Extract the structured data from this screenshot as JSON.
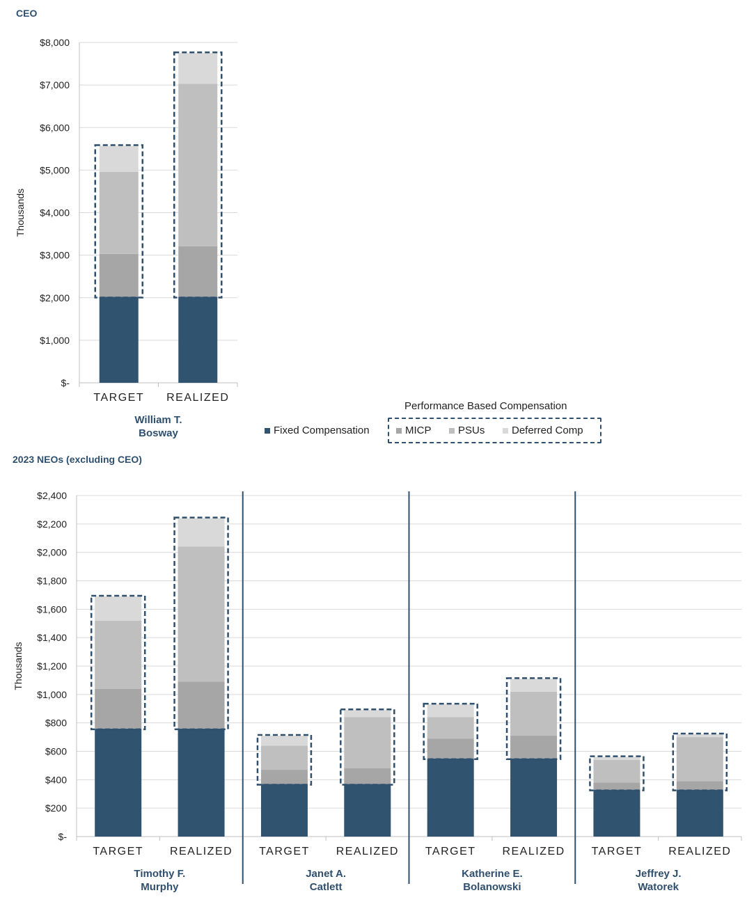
{
  "colors": {
    "fixed": "#30536f",
    "micp": "#a6a6a6",
    "psus": "#bfbfbf",
    "deferred": "#d9d9d9",
    "outline": "#2f4f6e",
    "grid": "#d9d9d9",
    "axis": "#bfbfbf"
  },
  "sections": {
    "ceo_title": "CEO",
    "neo_title": "2023 NEOs (excluding CEO)"
  },
  "legend": {
    "perf_title": "Performance Based Compensation",
    "fixed": "Fixed Compensation",
    "micp": "MICP",
    "psus": "PSUs",
    "deferred": "Deferred Comp"
  },
  "chart_data": [
    {
      "type": "bar",
      "stacked": true,
      "title": "CEO",
      "ylabel": "Thousands",
      "ylim": [
        0,
        8000
      ],
      "yticks": [
        0,
        1000,
        2000,
        3000,
        4000,
        5000,
        6000,
        7000,
        8000
      ],
      "ytick_labels": [
        "$-",
        "$1,000",
        "$2,000",
        "$3,000",
        "$4,000",
        "$5,000",
        "$6,000",
        "$7,000",
        "$8,000"
      ],
      "categories": [
        "TARGET",
        "REALIZED"
      ],
      "groups": [
        {
          "name": "William T. Bosway",
          "line1": "William T.",
          "line2": "Bosway",
          "categories": [
            "TARGET",
            "REALIZED"
          ]
        }
      ],
      "series": [
        {
          "name": "Fixed Compensation",
          "values": [
            2020,
            2020
          ]
        },
        {
          "name": "MICP",
          "values": [
            1010,
            1190
          ]
        },
        {
          "name": "PSUs",
          "values": [
            1930,
            3820
          ]
        },
        {
          "name": "Deferred Comp",
          "values": [
            610,
            720
          ]
        }
      ]
    },
    {
      "type": "bar",
      "stacked": true,
      "title": "2023 NEOs (excluding CEO)",
      "ylabel": "Thousands",
      "ylim": [
        0,
        2400
      ],
      "yticks": [
        0,
        200,
        400,
        600,
        800,
        1000,
        1200,
        1400,
        1600,
        1800,
        2000,
        2200,
        2400
      ],
      "ytick_labels": [
        "$-",
        "$200",
        "$400",
        "$600",
        "$800",
        "$1,000",
        "$1,200",
        "$1,400",
        "$1,600",
        "$1,800",
        "$2,000",
        "$2,200",
        "$2,400"
      ],
      "categories": [
        "TARGET",
        "REALIZED",
        "TARGET",
        "REALIZED",
        "TARGET",
        "REALIZED",
        "TARGET",
        "REALIZED"
      ],
      "groups": [
        {
          "name": "Timothy F. Murphy",
          "line1": "Timothy F.",
          "line2": "Murphy",
          "categories": [
            "TARGET",
            "REALIZED"
          ]
        },
        {
          "name": "Janet A. Catlett",
          "line1": "Janet A.",
          "line2": "Catlett",
          "categories": [
            "TARGET",
            "REALIZED"
          ]
        },
        {
          "name": "Katherine E. Bolanowski",
          "line1": "Katherine E.",
          "line2": "Bolanowski",
          "categories": [
            "TARGET",
            "REALIZED"
          ]
        },
        {
          "name": "Jeffrey J. Watorek",
          "line1": "Jeffrey J.",
          "line2": "Watorek",
          "categories": [
            "TARGET",
            "REALIZED"
          ]
        }
      ],
      "series": [
        {
          "name": "Fixed Compensation",
          "values": [
            760,
            760,
            370,
            370,
            550,
            550,
            330,
            330
          ]
        },
        {
          "name": "MICP",
          "values": [
            280,
            330,
            100,
            110,
            140,
            160,
            50,
            60
          ]
        },
        {
          "name": "PSUs",
          "values": [
            480,
            950,
            170,
            360,
            150,
            310,
            160,
            310
          ]
        },
        {
          "name": "Deferred Comp",
          "values": [
            170,
            200,
            70,
            50,
            90,
            90,
            20,
            20
          ]
        }
      ]
    }
  ]
}
